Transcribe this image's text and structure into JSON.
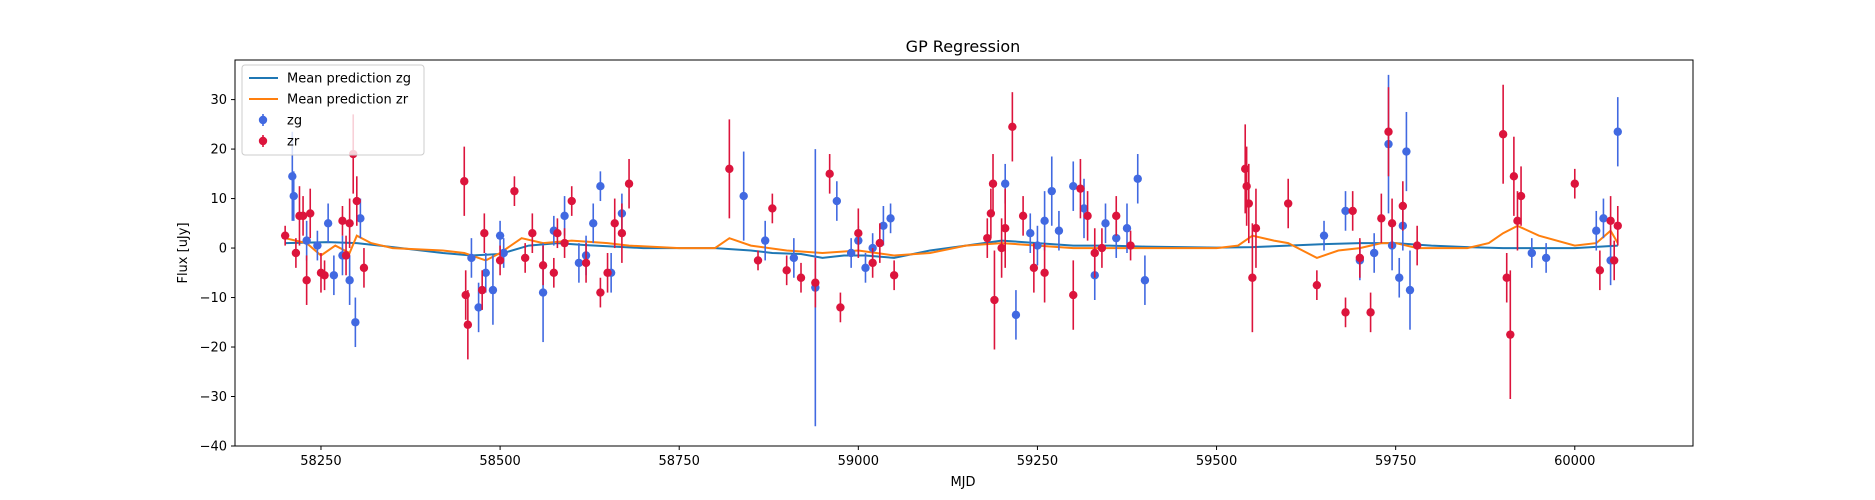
{
  "chart_data": {
    "type": "scatter",
    "title": "GP Regression",
    "xlabel": "MJD",
    "ylabel": "Flux [uJy]",
    "xlim": [
      58130,
      60165
    ],
    "ylim": [
      -40,
      38
    ],
    "xticks": [
      58250,
      58500,
      58750,
      59000,
      59250,
      59500,
      59750,
      60000
    ],
    "yticks": [
      -40,
      -30,
      -20,
      -10,
      0,
      10,
      20,
      30
    ],
    "grid": false,
    "legend_position": "upper left",
    "colors": {
      "zg_line": "#1f77b4",
      "zr_line": "#ff7f0e",
      "zg_points": "#4169e1",
      "zr_points": "#dc143c"
    },
    "legend": [
      {
        "label": "Mean prediction zg",
        "kind": "line",
        "color": "#1f77b4"
      },
      {
        "label": "Mean prediction zr",
        "kind": "line",
        "color": "#ff7f0e"
      },
      {
        "label": "zg",
        "kind": "errorbar",
        "color": "#4169e1"
      },
      {
        "label": "zr",
        "kind": "errorbar",
        "color": "#dc143c"
      }
    ],
    "series": [
      {
        "name": "Mean prediction zg",
        "kind": "line",
        "x": [
          58200,
          58260,
          58300,
          58350,
          58420,
          58460,
          58500,
          58540,
          58580,
          58620,
          58660,
          58700,
          58750,
          58800,
          58850,
          58880,
          58920,
          58950,
          58980,
          59010,
          59050,
          59100,
          59150,
          59200,
          59250,
          59300,
          59350,
          59400,
          59450,
          59500,
          59550,
          59600,
          59650,
          59700,
          59750,
          59800,
          59850,
          59900,
          59950,
          60000,
          60060
        ],
        "y": [
          1.0,
          1.2,
          1.0,
          0.2,
          -1.0,
          -1.5,
          -1.2,
          0.5,
          1.0,
          0.6,
          0.3,
          0.0,
          0.0,
          0.0,
          -0.5,
          -1.0,
          -1.2,
          -2.0,
          -1.5,
          -1.5,
          -2.0,
          -0.5,
          0.5,
          1.5,
          1.0,
          0.5,
          0.5,
          0.3,
          0.2,
          0.1,
          0.2,
          0.5,
          0.8,
          1.0,
          1.0,
          0.5,
          0.2,
          0.0,
          0.0,
          0.0,
          0.5
        ]
      },
      {
        "name": "Mean prediction zr",
        "kind": "line",
        "x": [
          58200,
          58230,
          58250,
          58270,
          58290,
          58300,
          58320,
          58350,
          58420,
          58450,
          58480,
          58500,
          58530,
          58560,
          58600,
          58650,
          58680,
          58750,
          58800,
          58820,
          58850,
          58900,
          58950,
          59000,
          59050,
          59100,
          59150,
          59200,
          59250,
          59300,
          59350,
          59400,
          59450,
          59500,
          59530,
          59550,
          59580,
          59600,
          59620,
          59640,
          59670,
          59700,
          59730,
          59750,
          59780,
          59800,
          59850,
          59880,
          59900,
          59920,
          59950,
          60000,
          60030,
          60050,
          60060
        ],
        "y": [
          2.0,
          1.0,
          -1.5,
          0.5,
          -1.0,
          2.5,
          1.0,
          0.0,
          -0.5,
          -1.0,
          -2.5,
          -1.0,
          2.0,
          1.0,
          1.5,
          1.0,
          0.5,
          0.0,
          0.0,
          2.0,
          0.5,
          -0.5,
          -1.0,
          -0.5,
          -1.5,
          -1.0,
          0.5,
          1.0,
          0.5,
          0.0,
          0.0,
          0.0,
          0.0,
          0.0,
          0.5,
          2.5,
          1.5,
          1.0,
          -0.5,
          -2.0,
          -0.5,
          0.0,
          1.0,
          1.0,
          0.0,
          0.0,
          0.0,
          1.0,
          3.0,
          4.5,
          2.5,
          0.5,
          1.0,
          3.5,
          1.0
        ]
      },
      {
        "name": "zg",
        "kind": "errorbar",
        "x": [
          58210,
          58212,
          58230,
          58245,
          58260,
          58268,
          58280,
          58290,
          58298,
          58305,
          58460,
          58470,
          58480,
          58490,
          58500,
          58505,
          58560,
          58575,
          58590,
          58610,
          58620,
          58630,
          58640,
          58655,
          58670,
          58840,
          58870,
          58910,
          58940,
          58970,
          58990,
          59000,
          59010,
          59020,
          59035,
          59045,
          59205,
          59220,
          59240,
          59250,
          59260,
          59270,
          59280,
          59300,
          59315,
          59330,
          59345,
          59360,
          59375,
          59390,
          59400,
          59650,
          59680,
          59700,
          59720,
          59740,
          59745,
          59755,
          59760,
          59765,
          59770,
          59940,
          59960,
          60030,
          60040,
          60050,
          60060
        ],
        "y": [
          14.5,
          10.5,
          1.5,
          0.5,
          5.0,
          -5.5,
          -1.5,
          -6.5,
          -15.0,
          6.0,
          -2.0,
          -12.0,
          -5.0,
          -8.5,
          2.5,
          -1.0,
          -9.0,
          3.5,
          6.5,
          -3.0,
          -1.5,
          5.0,
          12.5,
          -5.0,
          7.0,
          10.5,
          1.5,
          -2.0,
          -8.0,
          9.5,
          -1.0,
          1.5,
          -4.0,
          0.0,
          4.5,
          6.0,
          13.0,
          -13.5,
          3.0,
          0.5,
          5.5,
          11.5,
          3.5,
          12.5,
          8.0,
          -5.5,
          5.0,
          2.0,
          4.0,
          14.0,
          -6.5,
          2.5,
          7.5,
          -2.5,
          -1.0,
          21.0,
          0.5,
          -6.0,
          4.5,
          19.5,
          -8.5,
          -1.0,
          -2.0,
          3.5,
          6.0,
          -2.5,
          23.5
        ],
        "err": [
          9,
          5,
          4,
          3,
          4,
          4,
          4,
          5,
          5,
          4,
          4,
          5,
          4,
          7,
          3,
          3,
          10,
          3,
          4,
          4,
          4,
          4,
          3,
          4,
          4,
          9,
          4,
          4,
          28,
          4,
          3,
          3,
          3,
          3,
          4,
          3,
          4,
          5,
          4,
          4,
          6,
          7,
          4,
          5,
          6,
          5,
          4,
          4,
          5,
          5,
          5,
          3,
          4,
          4,
          4,
          14,
          5,
          4,
          5,
          8,
          8,
          3,
          3,
          4,
          4,
          5,
          7
        ]
      },
      {
        "name": "zr",
        "kind": "errorbar",
        "x": [
          58200,
          58215,
          58220,
          58225,
          58230,
          58235,
          58250,
          58255,
          58280,
          58285,
          58290,
          58295,
          58300,
          58310,
          58450,
          58452,
          58455,
          58475,
          58478,
          58500,
          58520,
          58535,
          58545,
          58560,
          58575,
          58580,
          58590,
          58600,
          58620,
          58640,
          58650,
          58660,
          58670,
          58680,
          58820,
          58860,
          58880,
          58900,
          58920,
          58940,
          58960,
          58975,
          59000,
          59020,
          59030,
          59050,
          59180,
          59185,
          59188,
          59190,
          59200,
          59205,
          59215,
          59230,
          59245,
          59260,
          59300,
          59310,
          59320,
          59330,
          59340,
          59360,
          59380,
          59540,
          59542,
          59545,
          59550,
          59555,
          59600,
          59640,
          59680,
          59690,
          59700,
          59715,
          59730,
          59740,
          59745,
          59760,
          59780,
          59900,
          59905,
          59910,
          59915,
          59920,
          59925,
          60000,
          60035,
          60050,
          60055,
          60060
        ],
        "y": [
          2.5,
          -1.0,
          6.5,
          6.5,
          -6.5,
          7.0,
          -5.0,
          -5.5,
          5.5,
          -1.5,
          5.0,
          19.0,
          9.5,
          -4.0,
          13.5,
          -9.5,
          -15.5,
          -8.5,
          3.0,
          -2.5,
          11.5,
          -2.0,
          3.0,
          -3.5,
          -5.0,
          3.0,
          1.0,
          9.5,
          -3.0,
          -9.0,
          -5.0,
          5.0,
          3.0,
          13.0,
          16.0,
          -2.5,
          8.0,
          -4.5,
          -6.0,
          -7.0,
          15.0,
          -12.0,
          3.0,
          -3.0,
          1.0,
          -5.5,
          2.0,
          7.0,
          13.0,
          -10.5,
          0.0,
          4.0,
          24.5,
          6.5,
          -4.0,
          -5.0,
          -9.5,
          12.0,
          6.5,
          -1.0,
          0.0,
          6.5,
          0.5,
          16.0,
          12.5,
          9.0,
          -6.0,
          4.0,
          9.0,
          -7.5,
          -13.0,
          7.5,
          -2.0,
          -13.0,
          6.0,
          23.5,
          5.0,
          8.5,
          0.5,
          23.0,
          -6.0,
          -17.5,
          14.5,
          5.5,
          10.5,
          13.0,
          -4.5,
          5.5,
          -2.5,
          4.5
        ],
        "err": [
          2,
          3,
          6,
          4,
          5,
          5,
          4,
          3,
          3,
          4,
          5,
          8,
          5,
          4,
          7,
          5,
          7,
          4,
          4,
          3,
          3,
          3,
          4,
          4,
          3,
          3,
          3,
          3,
          4,
          3,
          4,
          5,
          6,
          5,
          10,
          2,
          3,
          3,
          3,
          5,
          4,
          3,
          5,
          3,
          4,
          3,
          4,
          5,
          6,
          10,
          6,
          8,
          7,
          4,
          5,
          6,
          7,
          6,
          5,
          5,
          4,
          4,
          3,
          9,
          8,
          8,
          11,
          8,
          5,
          3,
          3,
          4,
          4,
          4,
          5,
          9,
          5,
          5,
          4,
          10,
          5,
          13,
          8,
          6,
          6,
          3,
          4,
          5,
          4,
          4
        ]
      }
    ]
  }
}
